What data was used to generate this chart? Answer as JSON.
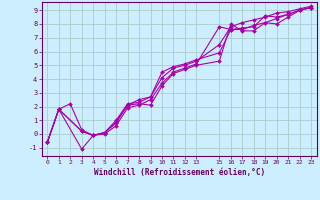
{
  "bg_color": "#cceeff",
  "grid_color": "#aacccc",
  "line_color": "#aa00aa",
  "spine_color": "#660066",
  "tick_color": "#660066",
  "xlabel": "Windchill (Refroidissement éolien,°C)",
  "xlim": [
    -0.5,
    23.5
  ],
  "ylim": [
    -1.6,
    9.6
  ],
  "xticks": [
    0,
    1,
    2,
    3,
    4,
    5,
    6,
    7,
    8,
    9,
    10,
    11,
    12,
    13,
    15,
    16,
    17,
    18,
    19,
    20,
    21,
    22,
    23
  ],
  "yticks": [
    -1,
    0,
    1,
    2,
    3,
    4,
    5,
    6,
    7,
    8,
    9
  ],
  "lines": [
    {
      "x": [
        0,
        1,
        2,
        3,
        4,
        5,
        6,
        7,
        8,
        9,
        10,
        11,
        12,
        13,
        15,
        16,
        17,
        18,
        19,
        20,
        21,
        22,
        23
      ],
      "y": [
        -0.6,
        1.8,
        2.2,
        0.3,
        -0.1,
        0.0,
        0.6,
        1.9,
        2.1,
        2.5,
        3.7,
        4.5,
        4.8,
        5.1,
        7.8,
        7.6,
        7.7,
        7.8,
        8.6,
        8.5,
        8.7,
        9.0,
        9.2
      ]
    },
    {
      "x": [
        0,
        1,
        3,
        4,
        5,
        6,
        7,
        8,
        9,
        10,
        11,
        12,
        13,
        15,
        16,
        17,
        18,
        19,
        20,
        21,
        22,
        23
      ],
      "y": [
        -0.6,
        1.8,
        -1.1,
        -0.1,
        0.1,
        0.8,
        2.1,
        2.2,
        2.1,
        3.5,
        4.4,
        4.7,
        5.0,
        5.3,
        8.0,
        7.5,
        7.5,
        8.1,
        8.0,
        8.5,
        9.0,
        9.2
      ]
    },
    {
      "x": [
        0,
        1,
        3,
        4,
        5,
        6,
        7,
        8,
        9,
        10,
        11,
        12,
        13,
        15,
        16,
        17,
        18,
        19,
        20,
        21,
        22,
        23
      ],
      "y": [
        -0.6,
        1.8,
        0.2,
        -0.1,
        0.1,
        1.0,
        2.2,
        2.3,
        2.7,
        4.5,
        4.9,
        5.1,
        5.4,
        5.9,
        7.6,
        7.6,
        7.9,
        8.1,
        8.4,
        8.7,
        9.0,
        9.2
      ]
    },
    {
      "x": [
        0,
        1,
        3,
        4,
        5,
        6,
        7,
        8,
        9,
        10,
        11,
        12,
        13,
        15,
        16,
        17,
        18,
        19,
        20,
        21,
        22,
        23
      ],
      "y": [
        -0.6,
        1.8,
        0.2,
        -0.1,
        0.1,
        0.9,
        2.1,
        2.5,
        2.7,
        4.1,
        4.8,
        5.0,
        5.3,
        6.5,
        7.8,
        8.1,
        8.3,
        8.5,
        8.8,
        8.9,
        9.1,
        9.3
      ]
    }
  ]
}
